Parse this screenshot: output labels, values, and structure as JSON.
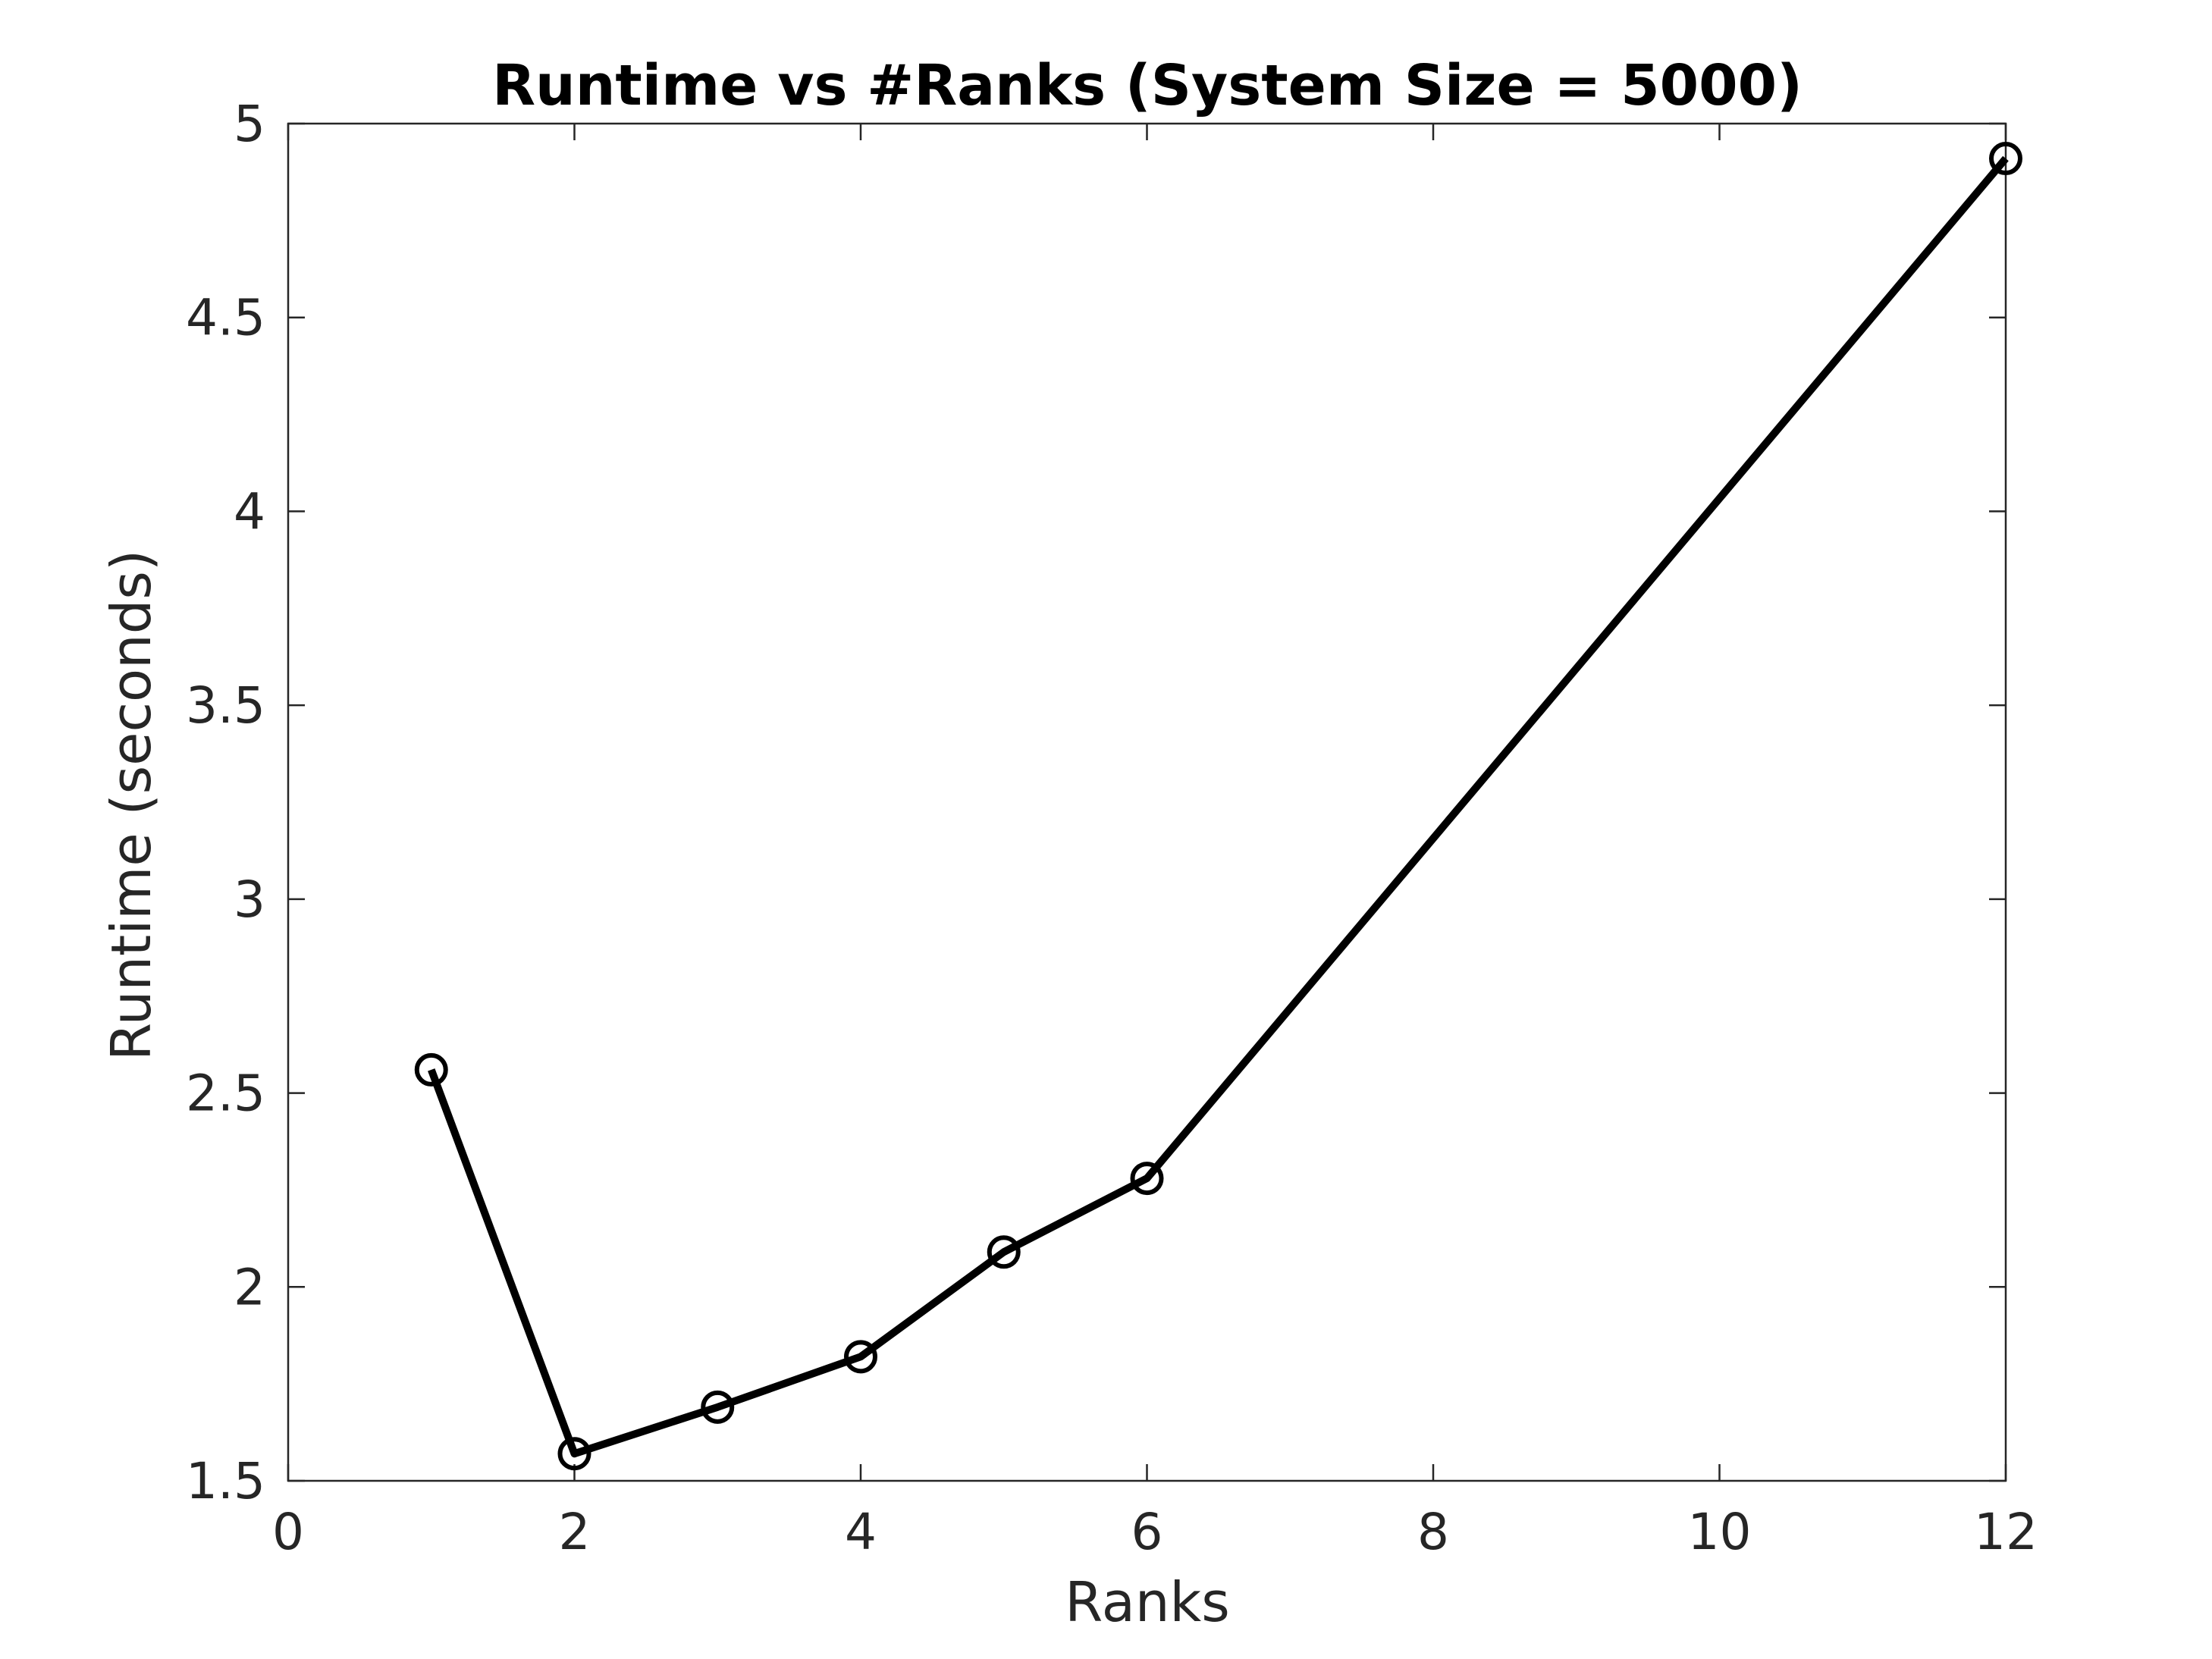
{
  "chart_data": {
    "type": "line",
    "title": "Runtime vs #Ranks (System Size = 5000)",
    "xlabel": "Ranks",
    "ylabel": "Runtime (seconds)",
    "xlim": [
      0,
      12
    ],
    "ylim": [
      1.5,
      5
    ],
    "xticks": [
      0,
      2,
      4,
      6,
      8,
      10,
      12
    ],
    "xtick_labels": [
      "0",
      "2",
      "4",
      "6",
      "8",
      "10",
      "12"
    ],
    "yticks": [
      1.5,
      2,
      2.5,
      3,
      3.5,
      4,
      4.5,
      5
    ],
    "ytick_labels": [
      "1.5",
      "2",
      "2.5",
      "3",
      "3.5",
      "4",
      "4.5",
      "5"
    ],
    "grid": false,
    "series": [
      {
        "x": [
          1,
          2,
          3,
          4,
          5,
          6,
          12
        ],
        "y": [
          2.56,
          1.57,
          1.69,
          1.82,
          2.09,
          2.28,
          4.91
        ],
        "color": "#000000",
        "marker": "circle"
      }
    ]
  }
}
